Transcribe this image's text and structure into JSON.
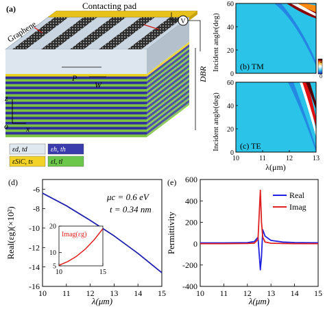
{
  "figure": {
    "panel_a": {
      "label": "(a)",
      "labels": {
        "graphene": "Graphene",
        "contacting_pad": "Contacting pad",
        "voltmeter": "V",
        "dbr": "DBR",
        "period": "P",
        "width": "W",
        "axis_z": "z",
        "axis_o": "o",
        "axis_x": "x"
      },
      "legend": [
        {
          "text": "εd, td",
          "color": "#dfe7ef"
        },
        {
          "text": "εh, th",
          "color": "#3a3cae"
        },
        {
          "text": "εSiC, ts",
          "color": "#f2d227"
        },
        {
          "text": "εl, tl",
          "color": "#6bc74a"
        }
      ],
      "colors": {
        "blue_layer": "#2f2f9e",
        "green_layer": "#7cc142",
        "yellow_layer": "#e8d21d",
        "top_slab": "#c6d3df",
        "stripe": "#2b2b2b"
      }
    },
    "panel_b": {
      "label": "(b) TM",
      "ylabel": "Incident angle(deg)",
      "yticks": [
        "0",
        "20",
        "40",
        "60"
      ],
      "colorbar_ticks": [
        "1",
        "0"
      ]
    },
    "panel_c": {
      "label": "(c) TE",
      "ylabel": "Incident angle(deg)",
      "yticks": [
        "0",
        "20",
        "40",
        "60"
      ],
      "xticks": [
        "10",
        "11",
        "12",
        "13"
      ],
      "xlabel": "λ(μm)"
    },
    "panel_d": {
      "label": "(d)",
      "ylabel": "Real(εg)(×10²)",
      "xlabel": "λ(μm)",
      "yticks": [
        "-6",
        "-8",
        "-10",
        "-12",
        "-14",
        "-16"
      ],
      "xticks": [
        "10",
        "11",
        "12",
        "13",
        "14",
        "15"
      ],
      "note_mu": "μc = 0.6 eV",
      "note_t": "t = 0.34 nm",
      "inset": {
        "label": "Imag(εg)",
        "yticks": [
          "20",
          "10",
          "5"
        ],
        "xticks": [
          "10",
          "15"
        ]
      }
    },
    "panel_e": {
      "label": "(e)",
      "ylabel": "Permittivity",
      "xlabel": "λ(μm)",
      "yticks": [
        "600",
        "400",
        "200",
        "0",
        "-200",
        "-400"
      ],
      "xticks": [
        "10",
        "11",
        "12",
        "13",
        "14",
        "15"
      ],
      "legend": [
        {
          "name": "Real",
          "color": "#1f1fe0"
        },
        {
          "name": "Imag",
          "color": "#e01f1f"
        }
      ]
    }
  },
  "chart_data": [
    {
      "type": "line",
      "panel": "d",
      "xlabel": "λ(μm)",
      "ylabel": "Real(εg)(×10²)",
      "xlim": [
        10,
        15
      ],
      "ylim": [
        -16,
        -5
      ],
      "series": [
        {
          "x": [
            10,
            11,
            12,
            13,
            14,
            15
          ],
          "y": [
            -6.4,
            -7.7,
            -9.2,
            -10.8,
            -12.6,
            -14.6
          ],
          "color": "#1f1fb0"
        }
      ]
    },
    {
      "type": "line",
      "panel": "d-inset",
      "title": "Imag(εg)",
      "xlim": [
        10,
        15
      ],
      "ylim": [
        5,
        20
      ],
      "series": [
        {
          "x": [
            10,
            11,
            12,
            13,
            14,
            15
          ],
          "y": [
            5.2,
            6.6,
            8.6,
            11.3,
            14.8,
            19.0
          ],
          "color": "#e01f1f"
        }
      ]
    },
    {
      "type": "line",
      "panel": "e",
      "xlabel": "λ(μm)",
      "ylabel": "Permittivity",
      "xlim": [
        10,
        15
      ],
      "ylim": [
        -400,
        600
      ],
      "series": [
        {
          "name": "Real",
          "color": "#1f1fe0",
          "x": [
            10,
            11,
            12,
            12.3,
            12.45,
            12.55,
            12.6,
            12.65,
            12.75,
            13,
            13.5,
            14,
            15
          ],
          "y": [
            7,
            7,
            9,
            20,
            60,
            -245,
            -120,
            130,
            70,
            30,
            15,
            10,
            8
          ]
        },
        {
          "name": "Imag",
          "color": "#e01f1f",
          "x": [
            10,
            11,
            12,
            12.3,
            12.45,
            12.55,
            12.6,
            12.65,
            12.75,
            13,
            13.5,
            14,
            15
          ],
          "y": [
            0,
            0,
            1,
            5,
            40,
            500,
            200,
            60,
            15,
            4,
            1,
            0,
            0
          ]
        }
      ]
    }
  ]
}
